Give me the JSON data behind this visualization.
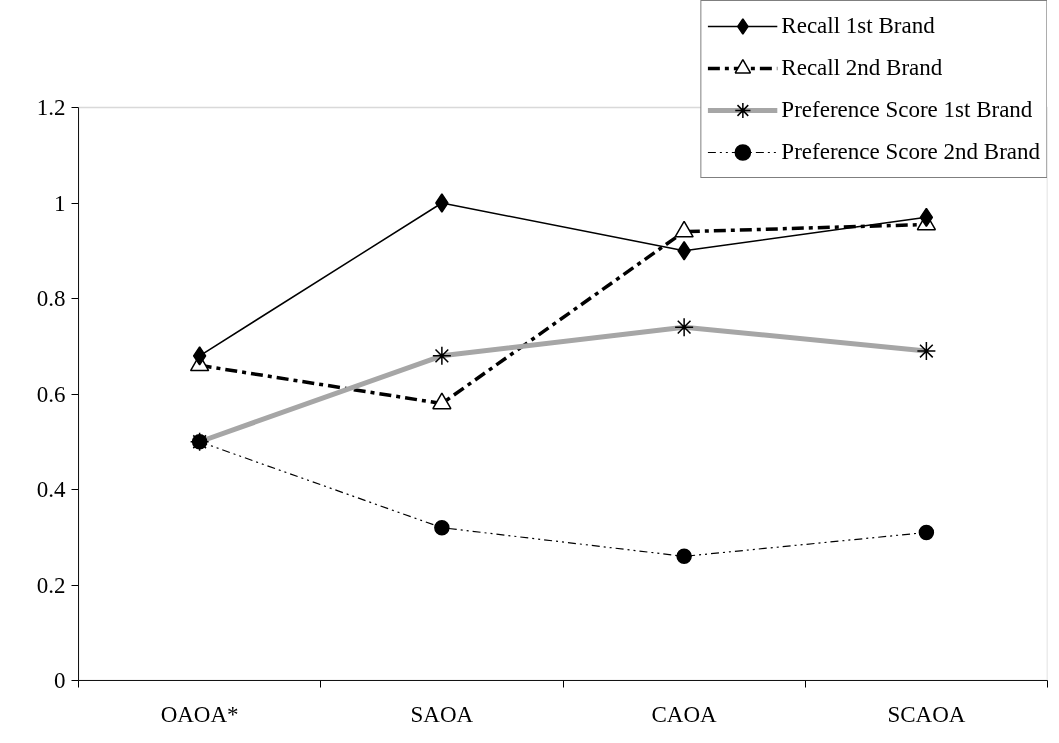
{
  "chart_data": {
    "type": "line",
    "categories": [
      "OAOA*",
      "SAOA",
      "CAOA",
      "SCAOA"
    ],
    "ylim": [
      0,
      1.2
    ],
    "yticks": [
      0,
      0.2,
      0.4,
      0.6,
      0.8,
      1,
      1.2
    ],
    "grid": false,
    "legend": "top right",
    "series": [
      {
        "name": "Recall 1st Brand",
        "color": "#000000",
        "marker": "diamond",
        "line_style": "solid",
        "values": [
          0.68,
          1.0,
          0.9,
          0.97
        ]
      },
      {
        "name": "Recall 2nd Brand",
        "color": "#000000",
        "marker": "triangle",
        "line_style": "dashed",
        "values": [
          0.66,
          0.58,
          0.94,
          0.955
        ]
      },
      {
        "name": "Preference Score 1st Brand",
        "color": "#a6a6a6",
        "marker": "cross",
        "line_style": "solid",
        "values": [
          0.5,
          0.68,
          0.74,
          0.69
        ]
      },
      {
        "name": "Preference Score 2nd Brand",
        "color": "#000000",
        "marker": "circle",
        "line_style": "dotted",
        "values": [
          0.5,
          0.32,
          0.26,
          0.31
        ]
      }
    ]
  }
}
